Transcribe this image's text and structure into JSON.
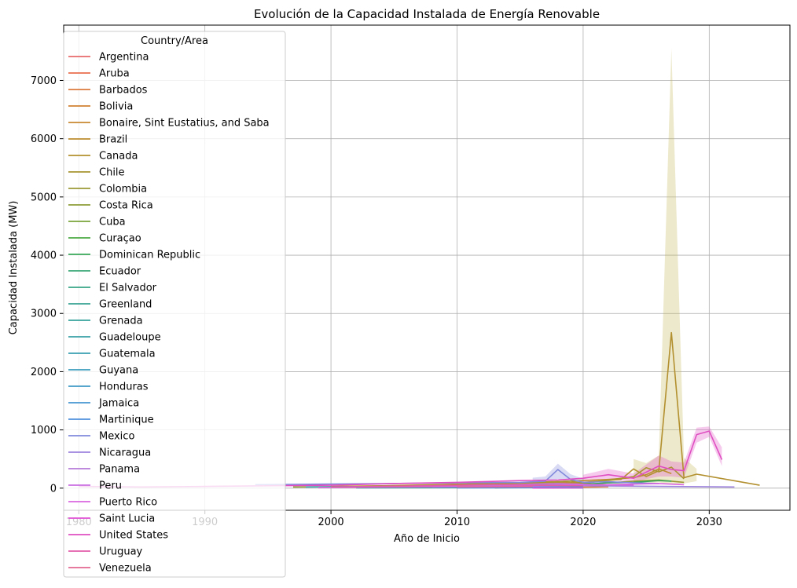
{
  "chart_data": {
    "type": "line",
    "title": "Evolución de la Capacidad Instalada de Energía Renovable",
    "xlabel": "Año de Inicio",
    "ylabel": "Capacidad Instalada (MW)",
    "xlim": [
      1978.8,
      2036.4
    ],
    "ylim": [
      -380,
      7950
    ],
    "xticks": [
      1980,
      1990,
      2000,
      2010,
      2020,
      2030
    ],
    "yticks": [
      0,
      1000,
      2000,
      3000,
      4000,
      5000,
      6000,
      7000
    ],
    "grid": true,
    "legend": {
      "title": "Country/Area",
      "placement": "upper-left"
    },
    "series": [
      {
        "name": "Argentina",
        "color": "#e8696b",
        "x": [
          2011,
          2014,
          2016,
          2017,
          2018,
          2019,
          2020,
          2021
        ],
        "y": [
          60,
          50,
          70,
          85,
          110,
          90,
          70,
          60
        ]
      },
      {
        "name": "Aruba",
        "color": "#e86e4e",
        "x": [
          2011,
          2014,
          2018
        ],
        "y": [
          30,
          25,
          40
        ]
      },
      {
        "name": "Barbados",
        "color": "#dc7a3d",
        "x": [
          2017,
          2019,
          2021,
          2022
        ],
        "y": [
          10,
          15,
          20,
          25
        ]
      },
      {
        "name": "Bolivia",
        "color": "#d08233",
        "x": [
          2014,
          2017,
          2019,
          2021
        ],
        "y": [
          50,
          70,
          60,
          50
        ]
      },
      {
        "name": "Bonaire, Sint Eustatius, and Saba",
        "color": "#c7882f",
        "x": [
          2010,
          2016
        ],
        "y": [
          10,
          12
        ]
      },
      {
        "name": "Brazil",
        "color": "#bd8c2f",
        "x": [
          2000,
          2004,
          2008,
          2012,
          2016,
          2020,
          2022,
          2024,
          2025,
          2026,
          2027
        ],
        "y": [
          30,
          40,
          60,
          80,
          100,
          130,
          150,
          180,
          230,
          330,
          250
        ]
      },
      {
        "name": "Canada",
        "color": "#b3902f",
        "x": [
          1997,
          2000,
          2005,
          2010,
          2015,
          2020,
          2023,
          2024,
          2025,
          2026,
          2027,
          2028,
          2029,
          2034
        ],
        "y": [
          20,
          25,
          40,
          55,
          70,
          100,
          150,
          330,
          200,
          300,
          2670,
          180,
          240,
          50
        ]
      },
      {
        "name": "Chile",
        "color": "#a89532",
        "x": [
          2008,
          2012,
          2016,
          2019,
          2020,
          2022,
          2024,
          2025,
          2026,
          2027,
          2028
        ],
        "y": [
          40,
          60,
          90,
          120,
          80,
          140,
          200,
          350,
          280,
          360,
          160
        ]
      },
      {
        "name": "Colombia",
        "color": "#9b9935",
        "x": [
          2010,
          2015,
          2018,
          2020,
          2022,
          2024,
          2026,
          2028
        ],
        "y": [
          30,
          50,
          70,
          60,
          90,
          120,
          140,
          100
        ]
      },
      {
        "name": "Costa Rica",
        "color": "#8d9d37",
        "x": [
          1997,
          2002,
          2008,
          2012,
          2016,
          2020
        ],
        "y": [
          20,
          25,
          30,
          35,
          30,
          25
        ]
      },
      {
        "name": "Cuba",
        "color": "#7aa23a",
        "x": [
          2013,
          2016,
          2018,
          2020
        ],
        "y": [
          5,
          10,
          12,
          8
        ]
      },
      {
        "name": "Curaçao",
        "color": "#4caa42",
        "x": [
          2012,
          2017,
          2020
        ],
        "y": [
          10,
          15,
          12
        ]
      },
      {
        "name": "Dominican Republic",
        "color": "#3aa85a",
        "x": [
          2011,
          2016,
          2020,
          2022,
          2024,
          2026,
          2027
        ],
        "y": [
          30,
          50,
          70,
          90,
          100,
          130,
          120
        ]
      },
      {
        "name": "Ecuador",
        "color": "#38a675",
        "x": [
          2005,
          2010,
          2015,
          2020
        ],
        "y": [
          20,
          30,
          40,
          30
        ]
      },
      {
        "name": "El Salvador",
        "color": "#36a486",
        "x": [
          2000,
          2008,
          2016,
          2020,
          2024
        ],
        "y": [
          20,
          25,
          40,
          50,
          60
        ]
      },
      {
        "name": "Greenland",
        "color": "#36a292",
        "x": [
          2002,
          2010,
          2018
        ],
        "y": [
          5,
          8,
          10
        ]
      },
      {
        "name": "Grenada",
        "color": "#37a29c",
        "x": [
          2016,
          2020
        ],
        "y": [
          2,
          4
        ]
      },
      {
        "name": "Guadeloupe",
        "color": "#38a0a6",
        "x": [
          2008,
          2014,
          2020
        ],
        "y": [
          10,
          15,
          12
        ]
      },
      {
        "name": "Guatemala",
        "color": "#3a9fb0",
        "x": [
          1998,
          2005,
          2012,
          2018,
          2021
        ],
        "y": [
          20,
          30,
          40,
          50,
          40
        ]
      },
      {
        "name": "Guyana",
        "color": "#3c9dbb",
        "x": [
          2016,
          2020
        ],
        "y": [
          5,
          10
        ]
      },
      {
        "name": "Honduras",
        "color": "#3f9ac6",
        "x": [
          2001,
          2008,
          2014,
          2018,
          2020
        ],
        "y": [
          20,
          30,
          50,
          40,
          30
        ]
      },
      {
        "name": "Jamaica",
        "color": "#4596d2",
        "x": [
          2010,
          2016,
          2019
        ],
        "y": [
          10,
          20,
          15
        ]
      },
      {
        "name": "Martinique",
        "color": "#5190de",
        "x": [
          2010,
          2016,
          2020
        ],
        "y": [
          5,
          8,
          6
        ]
      },
      {
        "name": "Mexico",
        "color": "#8189dc",
        "x": [
          1994,
          2000,
          2005,
          2010,
          2015,
          2017,
          2018,
          2019,
          2020,
          2022,
          2024,
          2026
        ],
        "y": [
          60,
          70,
          80,
          90,
          100,
          120,
          320,
          150,
          100,
          110,
          90,
          80
        ]
      },
      {
        "name": "Nicaragua",
        "color": "#9d82dd",
        "x": [
          2000,
          2010,
          2016,
          2020,
          2026,
          2032
        ],
        "y": [
          20,
          30,
          35,
          40,
          30,
          20
        ]
      },
      {
        "name": "Panama",
        "color": "#b57ada",
        "x": [
          2008,
          2014,
          2019,
          2022,
          2024
        ],
        "y": [
          20,
          40,
          60,
          50,
          40
        ]
      },
      {
        "name": "Peru",
        "color": "#c96ee0",
        "x": [
          2002,
          2008,
          2014,
          2018,
          2021,
          2024
        ],
        "y": [
          20,
          40,
          60,
          80,
          60,
          50
        ]
      },
      {
        "name": "Puerto Rico",
        "color": "#d965de",
        "x": [
          1999,
          2006,
          2012,
          2018,
          2022,
          2026,
          2028
        ],
        "y": [
          10,
          20,
          30,
          50,
          60,
          80,
          60
        ]
      },
      {
        "name": "Saint Lucia",
        "color": "#e04fd4",
        "x": [
          2016,
          2020
        ],
        "y": [
          2,
          4
        ]
      },
      {
        "name": "United States",
        "color": "#e04fc2",
        "x": [
          1980,
          1985,
          1990,
          1995,
          2000,
          2005,
          2010,
          2015,
          2018,
          2020,
          2022,
          2024,
          2026,
          2027,
          2028,
          2029,
          2030,
          2031
        ],
        "y": [
          30,
          20,
          30,
          40,
          50,
          80,
          100,
          130,
          140,
          170,
          230,
          170,
          380,
          320,
          300,
          920,
          980,
          490
        ]
      },
      {
        "name": "Uruguay",
        "color": "#e25da9",
        "x": [
          2000,
          2008,
          2013,
          2016,
          2020
        ],
        "y": [
          20,
          40,
          60,
          50,
          40
        ]
      },
      {
        "name": "Venezuela",
        "color": "#e26690",
        "x": [
          2010,
          2016
        ],
        "y": [
          20,
          25
        ]
      }
    ],
    "bands": [
      {
        "series": "Canada",
        "x": [
          2024,
          2025,
          2026,
          2027,
          2028,
          2029
        ],
        "lower": [
          100,
          80,
          100,
          60,
          80,
          120
        ],
        "upper": [
          500,
          430,
          560,
          7550,
          520,
          330
        ],
        "color": "#c4b657"
      },
      {
        "series": "Mexico",
        "x": [
          2016,
          2017,
          2018,
          2019,
          2020
        ],
        "lower": [
          60,
          70,
          160,
          80,
          50
        ],
        "upper": [
          180,
          200,
          420,
          240,
          160
        ],
        "color": "#8189dc"
      },
      {
        "series": "United States",
        "x": [
          2020,
          2022,
          2024,
          2026,
          2027,
          2028,
          2029,
          2030,
          2031
        ],
        "lower": [
          110,
          140,
          110,
          200,
          200,
          180,
          780,
          880,
          380
        ],
        "upper": [
          230,
          330,
          250,
          560,
          460,
          440,
          1040,
          1060,
          700
        ],
        "color": "#e04fc2"
      }
    ]
  }
}
